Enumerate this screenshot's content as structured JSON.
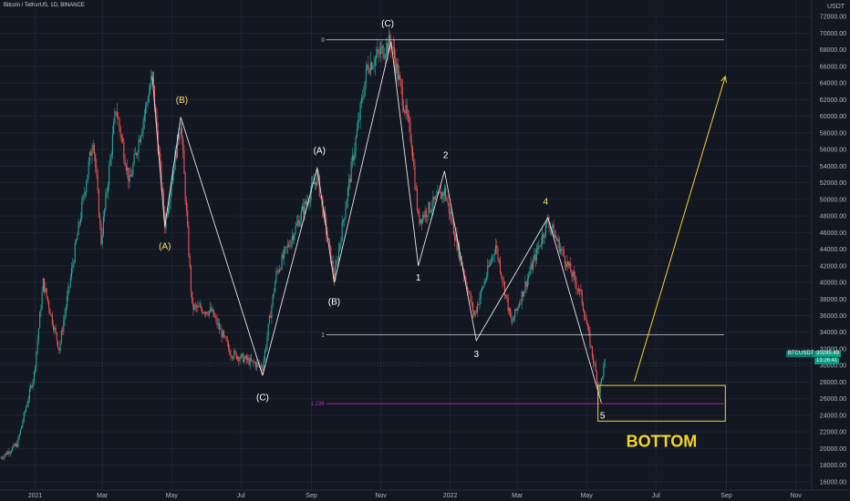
{
  "header": {
    "symbol_title": "Bitcoin / TetherUS, 1D, BINANCE"
  },
  "price_scale": {
    "currency": "USDT"
  },
  "quote": {
    "pair": "BTCUSDT",
    "price": "30295.49",
    "countdown": "13:26:41"
  },
  "chart_data": {
    "type": "candlestick",
    "title": "Bitcoin / TetherUS, 1D, BINANCE",
    "ylim": [
      15000,
      74000
    ],
    "xlim": [
      "2020-12-01",
      "2022-11-15"
    ],
    "y_ticks": [
      16000,
      18000,
      20000,
      22000,
      24000,
      26000,
      28000,
      30000,
      32000,
      34000,
      36000,
      38000,
      40000,
      42000,
      44000,
      46000,
      48000,
      50000,
      52000,
      54000,
      56000,
      58000,
      60000,
      62000,
      64000,
      66000,
      68000,
      70000,
      72000
    ],
    "y_tick_labels": [
      "16000.00",
      "18000.00",
      "20000.00",
      "22000.00",
      "24000.00",
      "26000.00",
      "28000.00",
      "30000.00",
      "32000.00",
      "34000.00",
      "36000.00",
      "38000.00",
      "40000.00",
      "42000.00",
      "44000.00",
      "46000.00",
      "48000.00",
      "50000.00",
      "52000.00",
      "54000.00",
      "56000.00",
      "58000.00",
      "60000.00",
      "62000.00",
      "64000.00",
      "66000.00",
      "68000.00",
      "70000.00",
      "72000.00"
    ],
    "x_ticks": [
      {
        "date": "2021-01-01",
        "label": "2021"
      },
      {
        "date": "2021-03-01",
        "label": "Mar"
      },
      {
        "date": "2021-05-01",
        "label": "May"
      },
      {
        "date": "2021-07-01",
        "label": "Jul"
      },
      {
        "date": "2021-09-01",
        "label": "Sep"
      },
      {
        "date": "2021-11-01",
        "label": "Nov"
      },
      {
        "date": "2022-01-01",
        "label": "2022"
      },
      {
        "date": "2022-03-01",
        "label": "Mar"
      },
      {
        "date": "2022-05-01",
        "label": "May"
      },
      {
        "date": "2022-07-01",
        "label": "Jul"
      },
      {
        "date": "2022-09-01",
        "label": "Sep"
      },
      {
        "date": "2022-11-01",
        "label": "Nov"
      }
    ],
    "price_path": [
      {
        "date": "2020-12-01",
        "price": 18800
      },
      {
        "date": "2020-12-16",
        "price": 20500
      },
      {
        "date": "2020-12-31",
        "price": 29000
      },
      {
        "date": "2021-01-08",
        "price": 40000
      },
      {
        "date": "2021-01-22",
        "price": 32000
      },
      {
        "date": "2021-02-08",
        "price": 46500
      },
      {
        "date": "2021-02-21",
        "price": 57500
      },
      {
        "date": "2021-02-28",
        "price": 45000
      },
      {
        "date": "2021-03-13",
        "price": 61000
      },
      {
        "date": "2021-03-25",
        "price": 52000
      },
      {
        "date": "2021-04-14",
        "price": 64800
      },
      {
        "date": "2021-04-25",
        "price": 47000
      },
      {
        "date": "2021-05-09",
        "price": 59500
      },
      {
        "date": "2021-05-19",
        "price": 37000
      },
      {
        "date": "2021-06-05",
        "price": 36500
      },
      {
        "date": "2021-06-22",
        "price": 31500
      },
      {
        "date": "2021-07-20",
        "price": 29800
      },
      {
        "date": "2021-08-01",
        "price": 41000
      },
      {
        "date": "2021-09-06",
        "price": 52800
      },
      {
        "date": "2021-09-21",
        "price": 40500
      },
      {
        "date": "2021-10-20",
        "price": 66000
      },
      {
        "date": "2021-11-10",
        "price": 69000
      },
      {
        "date": "2021-11-28",
        "price": 57000
      },
      {
        "date": "2021-12-04",
        "price": 47500
      },
      {
        "date": "2021-12-27",
        "price": 51000
      },
      {
        "date": "2022-01-22",
        "price": 36000
      },
      {
        "date": "2022-02-10",
        "price": 44500
      },
      {
        "date": "2022-02-24",
        "price": 35000
      },
      {
        "date": "2022-03-28",
        "price": 47500
      },
      {
        "date": "2022-04-26",
        "price": 38500
      },
      {
        "date": "2022-05-12",
        "price": 27000
      },
      {
        "date": "2022-05-17",
        "price": 30300
      }
    ],
    "wave_lines": [
      {
        "name": "first-correction",
        "points": [
          {
            "date": "2021-04-14",
            "price": 64800
          },
          {
            "date": "2021-04-25",
            "price": 46700
          },
          {
            "date": "2021-05-09",
            "price": 59900
          },
          {
            "date": "2021-07-20",
            "price": 28800
          }
        ]
      },
      {
        "name": "second-correction",
        "points": [
          {
            "date": "2021-07-20",
            "price": 28800
          },
          {
            "date": "2021-09-06",
            "price": 53800
          },
          {
            "date": "2021-09-21",
            "price": 40000
          },
          {
            "date": "2021-11-10",
            "price": 69000
          }
        ]
      },
      {
        "name": "impulse-down",
        "points": [
          {
            "date": "2021-11-10",
            "price": 69000
          },
          {
            "date": "2021-12-04",
            "price": 42000
          },
          {
            "date": "2021-12-27",
            "price": 53400
          },
          {
            "date": "2022-01-24",
            "price": 33000
          },
          {
            "date": "2022-03-28",
            "price": 47800
          },
          {
            "date": "2022-05-14",
            "price": 25500
          }
        ]
      }
    ],
    "wave_labels": [
      {
        "text": "(A)",
        "date": "2021-04-25",
        "price": 44000,
        "style": "yellow"
      },
      {
        "text": "(B)",
        "date": "2021-05-10",
        "price": 61600,
        "style": "yellow"
      },
      {
        "text": "(C)",
        "date": "2021-07-20",
        "price": 25800,
        "style": "white"
      },
      {
        "text": "(A)",
        "date": "2021-09-08",
        "price": 55500,
        "style": "white"
      },
      {
        "text": "(B)",
        "date": "2021-09-21",
        "price": 37300,
        "style": "white"
      },
      {
        "text": "(C)",
        "date": "2021-11-07",
        "price": 70800,
        "style": "white"
      },
      {
        "text": "1",
        "date": "2021-12-04",
        "price": 40200,
        "style": "white"
      },
      {
        "text": "2",
        "date": "2021-12-28",
        "price": 55000,
        "style": "white"
      },
      {
        "text": "3",
        "date": "2022-01-24",
        "price": 31000,
        "style": "white"
      },
      {
        "text": "4",
        "date": "2022-03-26",
        "price": 49400,
        "style": "yellow"
      },
      {
        "text": "5",
        "date": "2022-05-15",
        "price": 23600,
        "style": "white"
      }
    ],
    "fib_levels": [
      {
        "label": "0",
        "price": 69200,
        "color": "#d1d4dc",
        "from": "2021-09-06",
        "to": "2022-08-30"
      },
      {
        "label": "1",
        "price": 33700,
        "color": "#d1d4dc",
        "from": "2021-09-06",
        "to": "2022-08-30"
      },
      {
        "label": "1.236",
        "price": 25400,
        "color": "#b02fb0",
        "from": "2021-09-06",
        "to": "2022-08-30"
      }
    ],
    "bottom_zone": {
      "from": "2022-05-11",
      "to": "2022-08-31",
      "price_top": 27600,
      "price_bottom": 23300,
      "color": "#f2d52b",
      "label": "BOTTOM"
    },
    "projection_arrow": {
      "from_date": "2022-06-12",
      "from_price": 28100,
      "to_date": "2022-08-31",
      "to_price": 64800,
      "color": "#f2d52b"
    },
    "current_price": 30295.49,
    "candle_colors": {
      "up": "#26a69a",
      "down": "#ef5350"
    },
    "grid": true
  }
}
